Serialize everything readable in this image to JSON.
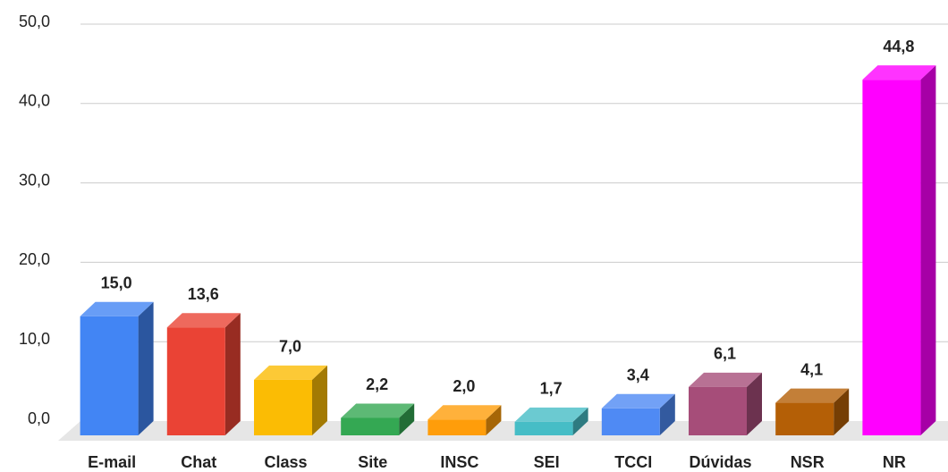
{
  "chart_data": {
    "type": "bar3d",
    "categories": [
      "E-mail",
      "Chat",
      "Class",
      "Site",
      "INSC",
      "SEI",
      "TCCI",
      "Dúvidas",
      "NSR",
      "NR"
    ],
    "values": [
      15.0,
      13.6,
      7.0,
      2.2,
      2.0,
      1.7,
      3.4,
      6.1,
      4.1,
      44.8
    ],
    "value_labels": [
      "15,0",
      "13,6",
      "7,0",
      "2,2",
      "2,0",
      "1,7",
      "3,4",
      "6,1",
      "4,1",
      "44,8"
    ],
    "colors": [
      "#4285f4",
      "#ea4335",
      "#fbbc04",
      "#34a853",
      "#ff9d0a",
      "#46bdc6",
      "#4f8af4",
      "#a64d79",
      "#b45f06",
      "#ff00ff"
    ],
    "ylim": [
      0,
      50
    ],
    "yticks": [
      {
        "value": 0,
        "label": "0,0"
      },
      {
        "value": 10,
        "label": "10,0"
      },
      {
        "value": 20,
        "label": "20,0"
      },
      {
        "value": 30,
        "label": "30,0"
      },
      {
        "value": 40,
        "label": "40,0"
      },
      {
        "value": 50,
        "label": "50,0"
      }
    ],
    "grid": true
  }
}
